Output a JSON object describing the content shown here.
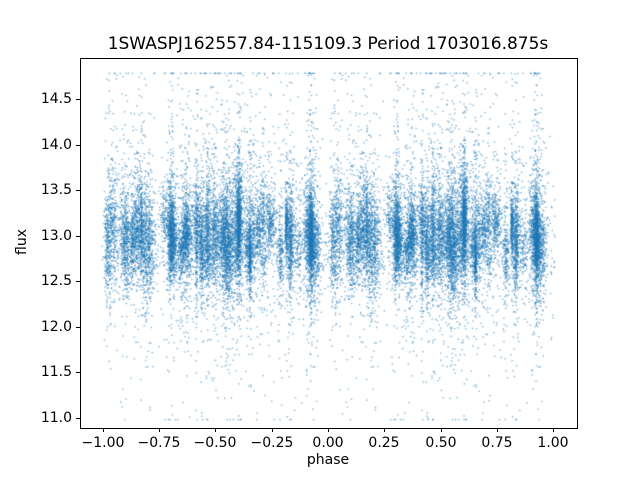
{
  "chart_data": {
    "type": "scatter",
    "title": "1SWASPJ162557.84-115109.3 Period 1703016.875s",
    "xlabel": "phase",
    "ylabel": "flux",
    "xlim": [
      -1.1,
      1.1
    ],
    "ylim": [
      10.9,
      14.95
    ],
    "xticks": [
      -1.0,
      -0.75,
      -0.5,
      -0.25,
      0.0,
      0.25,
      0.5,
      0.75,
      1.0
    ],
    "xtick_labels": [
      "−1.00",
      "−0.75",
      "−0.50",
      "−0.25",
      "0.00",
      "0.25",
      "0.50",
      "0.75",
      "1.00"
    ],
    "yticks": [
      11.0,
      11.5,
      12.0,
      12.5,
      13.0,
      13.5,
      14.0,
      14.5
    ],
    "ytick_labels": [
      "11.0",
      "11.5",
      "12.0",
      "12.5",
      "13.0",
      "13.5",
      "14.0",
      "14.5"
    ],
    "grid": false,
    "legend": null,
    "marker_color": "#1f77b4",
    "marker_alpha": 0.55,
    "marker_size": 1.4,
    "distribution": {
      "seed": 42,
      "phase_range": [
        -1,
        1
      ],
      "flux_mean": 13.0,
      "flux_sigma_core": 0.28,
      "flux_min": 11.0,
      "flux_max": 14.8,
      "n_columns": 60,
      "points_per_column": [
        120,
        380
      ],
      "column_tail_fraction": 0.18,
      "column_tail_sigma": 0.75,
      "background_points": 1800,
      "background_sigma": 0.45
    }
  }
}
